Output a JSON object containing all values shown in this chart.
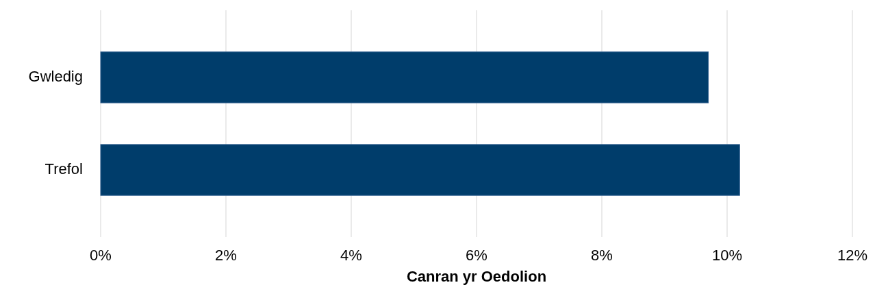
{
  "chart_data": {
    "type": "bar",
    "orientation": "horizontal",
    "categories": [
      "Gwledig",
      "Trefol"
    ],
    "values": [
      9.7,
      10.2
    ],
    "color": "#003d6b",
    "xlabel": "Canran yr Oedolion",
    "xlim": [
      0,
      12
    ],
    "xticks": [
      {
        "value": 0,
        "label": "0%"
      },
      {
        "value": 2,
        "label": "2%"
      },
      {
        "value": 4,
        "label": "4%"
      },
      {
        "value": 6,
        "label": "6%"
      },
      {
        "value": 8,
        "label": "8%"
      },
      {
        "value": 10,
        "label": "10%"
      },
      {
        "value": 12,
        "label": "12%"
      }
    ],
    "grid": "x"
  }
}
